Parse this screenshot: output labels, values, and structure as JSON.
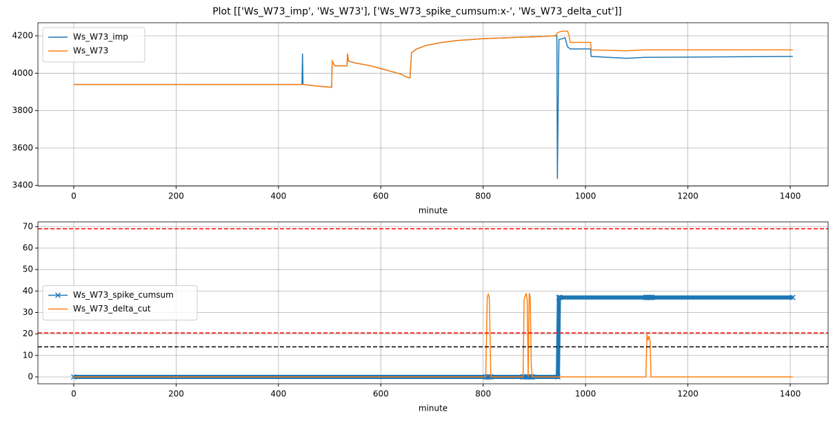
{
  "title": "Plot [['Ws_W73_imp', 'Ws_W73'], ['Ws_W73_spike_cumsum:x-', 'Ws_W73_delta_cut']]",
  "chart_data": [
    {
      "type": "line",
      "xlabel": "minute",
      "grid": true,
      "legend": "upper left",
      "xlim": [
        -70,
        1474
      ],
      "xticks": [
        0,
        200,
        400,
        600,
        800,
        1000,
        1200,
        1400
      ],
      "ylim": [
        3397,
        4270
      ],
      "yticks": [
        3400,
        3600,
        3800,
        4000,
        4200
      ],
      "x": [
        0,
        446,
        447,
        448,
        480,
        504,
        505,
        510,
        534,
        535,
        537,
        550,
        580,
        600,
        620,
        640,
        650,
        657,
        660,
        670,
        690,
        720,
        750,
        800,
        850,
        900,
        940,
        944,
        945,
        948,
        955,
        960,
        965,
        968,
        970,
        1010,
        1011,
        1080,
        1115,
        1405
      ],
      "series": [
        {
          "name": "Ws_W73_imp",
          "color": "#1f77b4",
          "values": [
            3940,
            3940,
            4105,
            3940,
            3930,
            3925,
            4065,
            4040,
            4040,
            4105,
            4065,
            4055,
            4040,
            4025,
            4010,
            3995,
            3980,
            3975,
            4110,
            4130,
            4150,
            4165,
            4175,
            4185,
            4190,
            4195,
            4200,
            4200,
            3435,
            4180,
            4185,
            4190,
            4140,
            4135,
            4130,
            4130,
            4090,
            4080,
            4085,
            4090
          ]
        },
        {
          "name": "Ws_W73",
          "color": "#ff7f0e",
          "values": [
            3940,
            3940,
            3940,
            3940,
            3930,
            3925,
            4065,
            4040,
            4040,
            4105,
            4065,
            4055,
            4040,
            4025,
            4010,
            3995,
            3980,
            3975,
            4110,
            4130,
            4150,
            4165,
            4175,
            4185,
            4190,
            4195,
            4200,
            4210,
            4215,
            4220,
            4225,
            4225,
            4225,
            4200,
            4165,
            4165,
            4125,
            4120,
            4125,
            4125
          ]
        }
      ]
    },
    {
      "type": "line",
      "xlabel": "minute",
      "grid": true,
      "legend": "center left",
      "xlim": [
        -70,
        1474
      ],
      "xticks": [
        0,
        200,
        400,
        600,
        800,
        1000,
        1200,
        1400
      ],
      "ylim": [
        -3.2,
        72.2
      ],
      "yticks": [
        0,
        10,
        20,
        30,
        40,
        50,
        60,
        70
      ],
      "hlines": [
        {
          "y": 69,
          "color": "#ff0000"
        },
        {
          "y": 20.5,
          "color": "#ff0000"
        },
        {
          "y": 14,
          "color": "#000000"
        }
      ],
      "x": [
        0,
        805,
        808,
        810,
        812,
        815,
        878,
        880,
        884,
        886,
        888,
        890,
        892,
        894,
        896,
        946,
        948,
        950,
        1118,
        1120,
        1122,
        1124,
        1126,
        1128,
        1130,
        1405
      ],
      "series": [
        {
          "name": "Ws_W73_spike_cumsum",
          "color": "#1f77b4",
          "marker": "x",
          "values": [
            0,
            0,
            0,
            0,
            0,
            0,
            0,
            0,
            0,
            0,
            0,
            0,
            0,
            0,
            0,
            0,
            37,
            37,
            37,
            37,
            37,
            37,
            37,
            37,
            37,
            37
          ]
        },
        {
          "name": "Ws_W73_delta_cut",
          "color": "#ff7f0e",
          "values": [
            0,
            0,
            37,
            38.5,
            37,
            0,
            0,
            36,
            39,
            36,
            0,
            39,
            37,
            5,
            0,
            0,
            0,
            0,
            0,
            20,
            17,
            19,
            17,
            0,
            0,
            0
          ]
        }
      ]
    }
  ]
}
